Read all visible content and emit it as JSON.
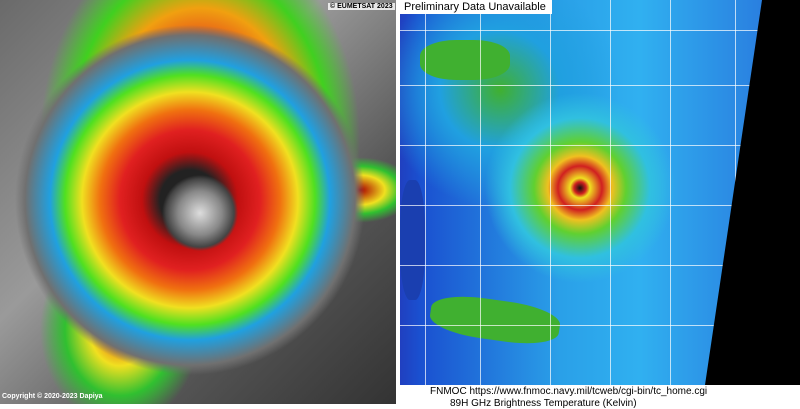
{
  "left_panel": {
    "credit_top": "© EUMETSAT 2023",
    "copyright": "Copyright © 2020-2023 Dapiya"
  },
  "right_panel": {
    "banner": "Preliminary Data Unavailable",
    "source_url": "FNMOC https://www.fnmoc.navy.mil/tcweb/cgi-bin/tc_home.cgi",
    "product": "89H GHz Brightness Temperature (Kelvin)"
  }
}
